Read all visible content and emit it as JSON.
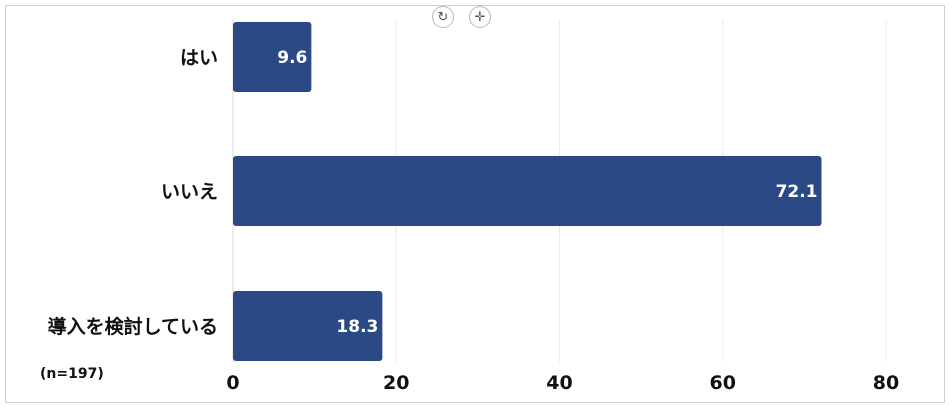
{
  "toolbar": {
    "rotate_icon": "rotate-icon",
    "move_icon": "move-icon"
  },
  "chart_data": {
    "type": "bar",
    "orientation": "horizontal",
    "categories": [
      "はい",
      "いいえ",
      "導入を検討している"
    ],
    "values": [
      9.6,
      72.1,
      18.3
    ],
    "xlim": [
      0,
      80
    ],
    "xticks": [
      0,
      20,
      40,
      60,
      80
    ],
    "grid": true,
    "bar_color": "#2b4a85",
    "note": "(n=197)"
  }
}
